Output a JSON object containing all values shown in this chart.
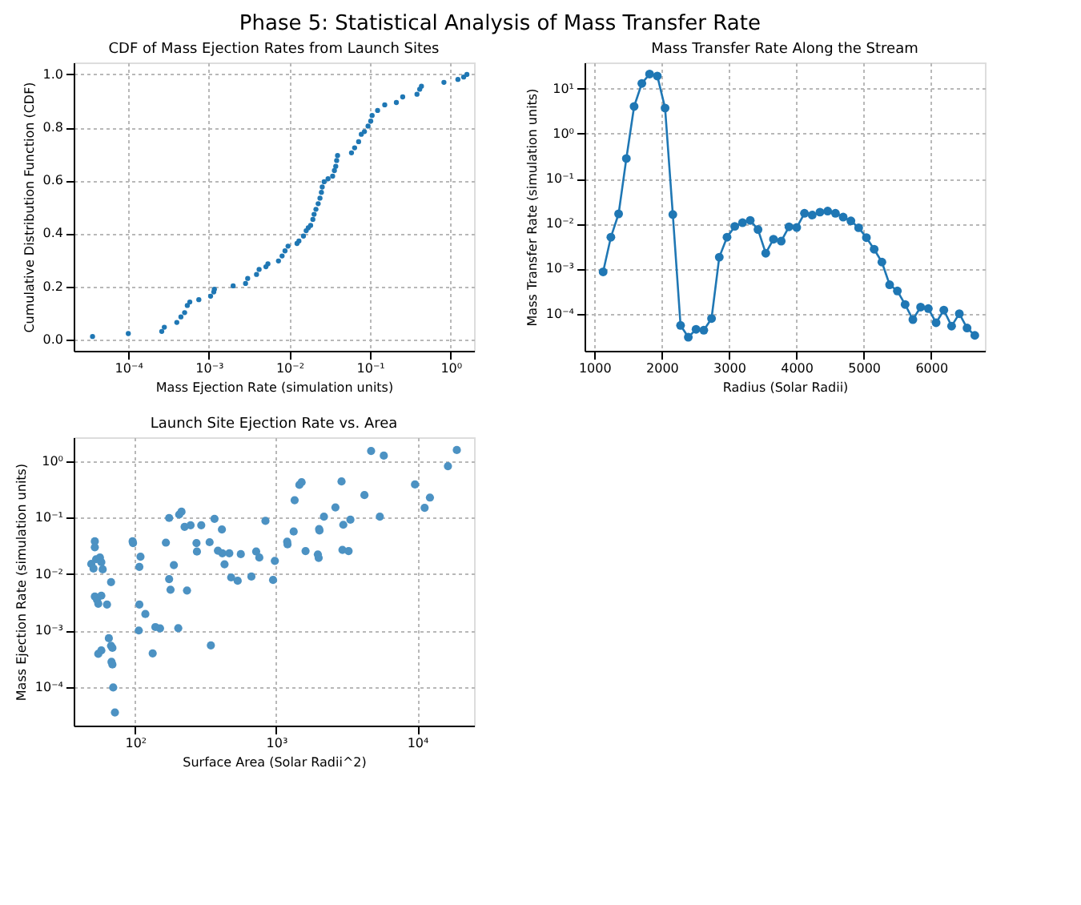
{
  "chart_data": [
    {
      "type": "scatter",
      "title": "CDF of Mass Ejection Rates from Launch Sites",
      "annotations": [
        "Phase 5: Statistical Analysis of Mass Transfer Rate"
      ],
      "xlabel": "Mass Ejection Rate (simulation units)",
      "ylabel": "Cumulative Distribution Function (CDF)",
      "color": "#1f77b4",
      "marker": "circle",
      "log": "x",
      "grid": true,
      "x": [
        3.6e-05,
        0.0001,
        0.00026,
        0.00028,
        0.0004,
        0.00045,
        0.0005,
        0.00054,
        0.00058,
        0.00075,
        0.00105,
        0.00115,
        0.00117,
        0.002,
        0.00285,
        0.00303,
        0.0039,
        0.0042,
        0.0051,
        0.0054,
        0.0073,
        0.0081,
        0.0088,
        0.0096,
        0.0124,
        0.0131,
        0.0149,
        0.0161,
        0.0171,
        0.0183,
        0.0195,
        0.0202,
        0.0213,
        0.0227,
        0.0239,
        0.0249,
        0.0255,
        0.0269,
        0.0301,
        0.0343,
        0.0361,
        0.0375,
        0.0385,
        0.0395,
        0.0588,
        0.0643,
        0.0721,
        0.0778,
        0.0851,
        0.0944,
        0.1019,
        0.106,
        0.124,
        0.152,
        0.212,
        0.254,
        0.382,
        0.413,
        0.434,
        0.825,
        1.23,
        1.45,
        1.59
      ],
      "values": [
        0.011,
        0.022,
        0.03,
        0.046,
        0.064,
        0.085,
        0.101,
        0.128,
        0.141,
        0.15,
        0.163,
        0.179,
        0.189,
        0.202,
        0.211,
        0.23,
        0.245,
        0.264,
        0.274,
        0.285,
        0.296,
        0.315,
        0.334,
        0.352,
        0.362,
        0.371,
        0.39,
        0.41,
        0.421,
        0.43,
        0.453,
        0.472,
        0.491,
        0.512,
        0.533,
        0.555,
        0.575,
        0.595,
        0.606,
        0.616,
        0.637,
        0.653,
        0.675,
        0.694,
        0.704,
        0.723,
        0.746,
        0.774,
        0.784,
        0.805,
        0.824,
        0.845,
        0.864,
        0.885,
        0.894,
        0.915,
        0.925,
        0.944,
        0.955,
        0.97,
        0.981,
        0.99,
        1.0
      ],
      "xlim": [
        2.1e-05,
        1.95
      ],
      "ylim": [
        -0.043,
        1.045
      ],
      "xticks": [
        {
          "value": 0.0001,
          "label": "10⁻⁴"
        },
        {
          "value": 0.001,
          "label": "10⁻³"
        },
        {
          "value": 0.01,
          "label": "10⁻²"
        },
        {
          "value": 0.1,
          "label": "10⁻¹"
        },
        {
          "value": 1,
          "label": "10⁰"
        }
      ],
      "yticks": [
        {
          "value": 0,
          "label": "0.0"
        },
        0.2,
        0.4,
        0.6,
        0.8,
        {
          "value": 1,
          "label": "1.0"
        }
      ]
    },
    {
      "type": "line",
      "title": "Mass Transfer Rate Along the Stream",
      "xlabel": "Radius (Solar Radii)",
      "ylabel": "Mass Transfer Rate (simulation units)",
      "color": "#1f77b4",
      "marker": "circle",
      "line_style": "solid",
      "log": "y",
      "grid": true,
      "x": [
        1130,
        1245,
        1360,
        1475,
        1590,
        1705,
        1820,
        1935,
        2050,
        2165,
        2280,
        2395,
        2510,
        2625,
        2740,
        2855,
        2970,
        3085,
        3200,
        3315,
        3430,
        3545,
        3660,
        3775,
        3890,
        4005,
        4120,
        4235,
        4350,
        4465,
        4580,
        4695,
        4810,
        4925,
        5040,
        5155,
        5270,
        5385,
        5500,
        5615,
        5730,
        5845,
        5960,
        6075,
        6190,
        6305,
        6420,
        6535,
        6650
      ],
      "values": [
        0.00085,
        0.005,
        0.0165,
        0.28,
        4,
        13,
        21,
        19,
        3.7,
        0.016,
        5.5e-05,
        3e-05,
        4.5e-05,
        4.3e-05,
        7.8e-05,
        0.0018,
        0.005,
        0.0087,
        0.0105,
        0.0118,
        0.0074,
        0.0022,
        0.0045,
        0.0041,
        0.0085,
        0.0082,
        0.017,
        0.0155,
        0.018,
        0.019,
        0.017,
        0.014,
        0.0115,
        0.0081,
        0.0049,
        0.0027,
        0.0014,
        0.00044,
        0.00032,
        0.00016,
        7.4e-05,
        0.00014,
        0.00013,
        6.3e-05,
        0.00012,
        5.3e-05,
        0.0001,
        4.8e-05,
        3.3e-05
      ],
      "xlim": [
        854,
        6800
      ],
      "ylim": [
        1.5e-05,
        38
      ],
      "xticks": [
        1000,
        2000,
        3000,
        4000,
        5000,
        6000
      ],
      "yticks": [
        {
          "value": 0.0001,
          "label": "10⁻⁴"
        },
        {
          "value": 0.001,
          "label": "10⁻³"
        },
        {
          "value": 0.01,
          "label": "10⁻²"
        },
        {
          "value": 0.1,
          "label": "10⁻¹"
        },
        {
          "value": 1,
          "label": "10⁰"
        },
        {
          "value": 10,
          "label": "10¹"
        }
      ]
    },
    {
      "type": "scatter",
      "title": "Launch Site Ejection Rate vs. Area",
      "xlabel": "Surface Area (Solar Radii^2)",
      "ylabel": "Mass Ejection Rate (simulation units)",
      "color": "#4c92c3",
      "marker": "circle",
      "log": "xy",
      "grid": true,
      "x": [
        48.8,
        50.6,
        51.7,
        51.7,
        52.8,
        51.7,
        53.6,
        54.7,
        56.2,
        57.5,
        58.8,
        57.5,
        63.1,
        54.7,
        57.5,
        65.0,
        67.4,
        67.4,
        68.9,
        67.9,
        68.9,
        69.8,
        71.8,
        95.8,
        96.5,
        107,
        109,
        107,
        106,
        118,
        139,
        150,
        133,
        165,
        174,
        174,
        178,
        188,
        202,
        205,
        213,
        224,
        233,
        247,
        294,
        272,
        274,
        337,
        344,
        365,
        386,
        412,
        415,
        430,
        465,
        479,
        533,
        561,
        667,
        721,
        759,
        839,
        950,
        978,
        1196,
        1203,
        1330,
        1351,
        1460,
        1514,
        1615,
        1974,
        2001,
        2015,
        2027,
        2181,
        2630,
        2906,
        2991,
        2950,
        3359,
        3262,
        4224,
        4710,
        5433,
        5796,
        9645,
        11290,
        12310,
        16520,
        19100
      ],
      "values": [
        0.0151,
        0.0125,
        0.0379,
        0.0298,
        0.0183,
        0.004,
        0.0035,
        0.00298,
        0.0196,
        0.0162,
        0.0121,
        0.00414,
        0.00288,
        0.000386,
        0.000443,
        0.00073,
        0.0072,
        0.000536,
        0.000492,
        0.000278,
        0.00025,
        9.8e-05,
        3.54e-05,
        0.0379,
        0.0354,
        0.0134,
        0.0203,
        0.00288,
        0.001,
        0.00196,
        0.00115,
        0.00109,
        0.000393,
        0.036,
        0.0983,
        0.00813,
        0.00527,
        0.0144,
        0.0011,
        0.113,
        0.127,
        0.0684,
        0.0051,
        0.0732,
        0.0732,
        0.0354,
        0.025,
        0.0366,
        0.000546,
        0.0949,
        0.0259,
        0.0616,
        0.0233,
        0.0149,
        0.0233,
        0.0087,
        0.0076,
        0.0225,
        0.009,
        0.025,
        0.0196,
        0.0871,
        0.00785,
        0.0171,
        0.0373,
        0.0336,
        0.0565,
        0.203,
        0.379,
        0.421,
        0.0255,
        0.0222,
        0.0193,
        0.0626,
        0.059,
        0.104,
        0.151,
        0.435,
        0.0745,
        0.0268,
        0.0917,
        0.0255,
        0.25,
        1.51,
        0.104,
        1.25,
        0.386,
        0.149,
        0.226,
        0.813,
        1.57
      ],
      "xlim": [
        36.6,
        25300
      ],
      "ylim": [
        2.07e-05,
        2.64
      ],
      "xticks": [
        {
          "value": 100,
          "label": "10²"
        },
        {
          "value": 1000,
          "label": "10³"
        },
        {
          "value": 10000,
          "label": "10⁴"
        }
      ],
      "yticks": [
        {
          "value": 0.0001,
          "label": "10⁻⁴"
        },
        {
          "value": 0.001,
          "label": "10⁻³"
        },
        {
          "value": 0.01,
          "label": "10⁻²"
        },
        {
          "value": 0.1,
          "label": "10⁻¹"
        },
        {
          "value": 1,
          "label": "10⁰"
        }
      ]
    }
  ]
}
